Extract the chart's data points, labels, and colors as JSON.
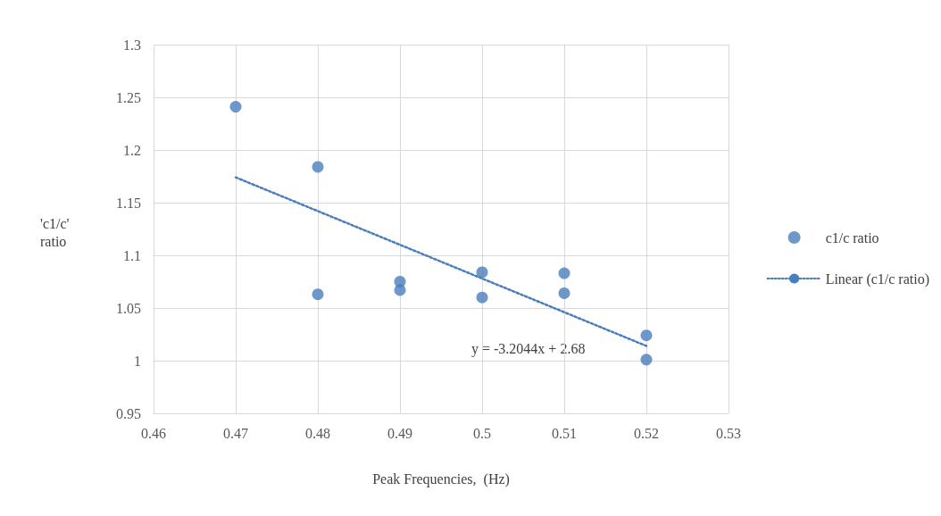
{
  "chart_data": {
    "type": "scatter",
    "xlabel": "Peak Frequencies,  (Hz)",
    "ylabel": "'c1/c'\nratio",
    "xlim": [
      0.46,
      0.53
    ],
    "xticks": [
      0.46,
      0.47,
      0.48,
      0.49,
      0.5,
      0.51,
      0.52,
      0.53
    ],
    "ylim": [
      0.95,
      1.3
    ],
    "yticks": [
      0.95,
      1,
      1.05,
      1.1,
      1.15,
      1.2,
      1.25,
      1.3
    ],
    "grid": true,
    "legend": "right",
    "series": [
      {
        "name": "c1/c ratio",
        "color": "#4a7ebb",
        "marker": "circle",
        "x": [
          0.47,
          0.48,
          0.48,
          0.49,
          0.49,
          0.5,
          0.5,
          0.51,
          0.51,
          0.52,
          0.52
        ],
        "values": [
          1.241,
          1.184,
          1.063,
          1.075,
          1.067,
          1.084,
          1.06,
          1.083,
          1.064,
          1.024,
          1.001
        ]
      },
      {
        "name": "Linear (c1/c ratio)",
        "type": "line",
        "color": "#4a7ebb",
        "marker": "none",
        "line_style": "dotted",
        "x": [
          0.47,
          0.52
        ],
        "values": [
          1.174,
          1.014
        ]
      }
    ],
    "annotations": [
      "y = -3.2044x + 2.68"
    ]
  }
}
